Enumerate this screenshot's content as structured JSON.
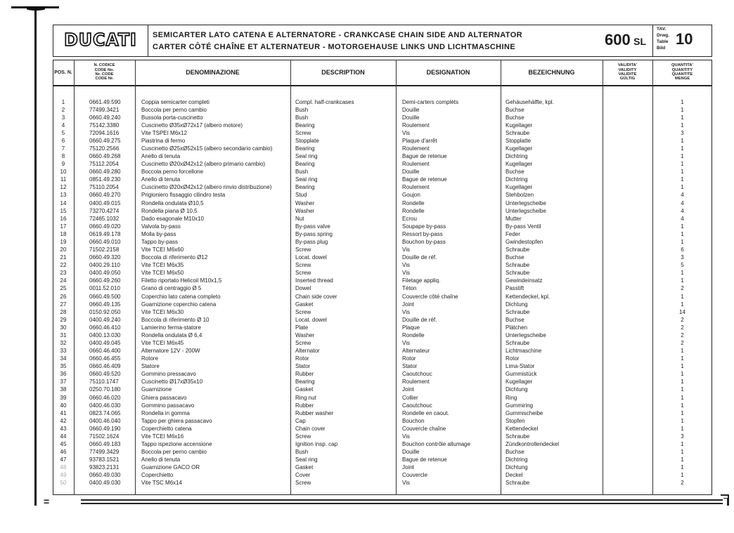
{
  "header": {
    "brand": "DUCATI",
    "title_line1": "SEMICARTER LATO CATENA E ALTERNATORE - CRANKCASE CHAIN SIDE AND ALTERNATOR",
    "title_line2": "CARTER CÔTÉ CHAÎNE ET ALTERNATEUR - MOTORGEHAUSE LINKS UND LICHTMASCHINE",
    "model_number": "600",
    "model_suffix": "SL",
    "table_labels": [
      "TAV.",
      "Drwg.",
      "Table",
      "Bild"
    ],
    "table_number": "10"
  },
  "columns": {
    "pos": "POS. N.",
    "code": "N. CODICE CODE No. Nr. CODE CODE Nr.",
    "code_lines": [
      "N. CODICE",
      "CODE No.",
      "Nr. CODE",
      "CODE Nr."
    ],
    "denominazione": "DENOMINAZIONE",
    "description": "DESCRIPTION",
    "designation": "DESIGNATION",
    "bezeichnung": "BEZEICHNUNG",
    "validity_lines": [
      "VALIDITA'",
      "VALIDITY",
      "VALIDITE",
      "GÜLTIG"
    ],
    "quantity_lines": [
      "QUANTITA'",
      "QUANTITY",
      "QUANTITE",
      "MENGE"
    ]
  },
  "rows": [
    [
      "1",
      "0661.49.590",
      "Coppia semicarter completi",
      "Compl. half-crankcases",
      "Demi-carters complèts",
      "Gehäusehälfte, kpl.",
      "1"
    ],
    [
      "2",
      "77499.3421",
      "Boccola per perno cambio",
      "Bush",
      "Douille",
      "Buchse",
      "1"
    ],
    [
      "3",
      "0660.49.240",
      "Bussola porta-cuscinetto",
      "Bush",
      "Douille",
      "Buchse",
      "1"
    ],
    [
      "4",
      "75142.3380",
      "Cuscinetto Ø35xØ72x17 (albero motore)",
      "Bearing",
      "Roulement",
      "Kugellager",
      "1"
    ],
    [
      "5",
      "72094.1616",
      "Vite TSPEI M6x12",
      "Screw",
      "Vis",
      "Schraube",
      "3"
    ],
    [
      "6",
      "0660.49.275",
      "Piastrina di fermo",
      "Stopplate",
      "Plaque d'arrêt",
      "Stopplatte",
      "1"
    ],
    [
      "7",
      "75120.2566",
      "Cuscinetto Ø25xØ52x15 (albero secondario cambio)",
      "Bearing",
      "Roulement",
      "Kugellager",
      "1"
    ],
    [
      "8",
      "0660.49.268",
      "Anello di tenuta",
      "Seal ring",
      "Bague de retenue",
      "Dichtring",
      "1"
    ],
    [
      "9",
      "75112.2054",
      "Cuscinetto Ø20xØ42x12 (albero primario cambio)",
      "Bearing",
      "Roulement",
      "Kugellager",
      "1"
    ],
    [
      "10",
      "0660.49.280",
      "Boccola perno forcellone",
      "Bush",
      "Douille",
      "Buchse",
      "1"
    ],
    [
      "11",
      "0851.49.230",
      "Anello di tenuta",
      "Seal ring",
      "Bague de retenue",
      "Dichtring",
      "1"
    ],
    [
      "12",
      "75110.2054",
      "Cuscinetto Ø20xØ42x12 (albero rinvio distribuzione)",
      "Bearing",
      "Roulement",
      "Kugellager",
      "1"
    ],
    [
      "13",
      "0660.49.270",
      "Prigioniero fissaggio cilindro testa",
      "Stud",
      "Goujon",
      "Stehbolzen",
      "4"
    ],
    [
      "14",
      "0400.49.015",
      "Rondella ondulata Ø10,5",
      "Washer",
      "Rondelle",
      "Unterlegscheibe",
      "4"
    ],
    [
      "15",
      "73270.4274",
      "Rondella piana Ø 10,5",
      "Washer",
      "Rondelle",
      "Unterlegscheibe",
      "4"
    ],
    [
      "16",
      "72465.1032",
      "Dado esagonale M10x10",
      "Nut",
      "Ecrou",
      "Mutter",
      "4"
    ],
    [
      "17",
      "0660.49.020",
      "Valvola by-pass",
      "By-pass valve",
      "Soupape by-pass",
      "By-pass Ventil",
      "1"
    ],
    [
      "18",
      "0619.49.178",
      "Molla by-pass",
      "By-pass spring",
      "Ressort by-pass",
      "Feder",
      "1"
    ],
    [
      "19",
      "0660.49.010",
      "Tappo by-pass",
      "By-pass plug",
      "Bouchon by-pass",
      "Gwindestopfen",
      "1"
    ],
    [
      "20",
      "71502.2158",
      "Vite TCEI M6x60",
      "Screw",
      "Vis",
      "Schraube",
      "6"
    ],
    [
      "21",
      "0660.49.320",
      "Boccola di riferimento Ø12",
      "Locat. dowel",
      "Douille de réf.",
      "Buchse",
      "3"
    ],
    [
      "22",
      "0400.29.110",
      "Vite TCEI M6x35",
      "Screw",
      "Vis",
      "Schraube",
      "5"
    ],
    [
      "23",
      "0400.49.050",
      "Vite TCEI M6x50",
      "Screw",
      "Vis",
      "Schraube",
      "1"
    ],
    [
      "24",
      "0660.49.260",
      "Filetto riportato Helicoil M10x1,5",
      "Inserted thread",
      "Filetage appliq.",
      "Gewindeinsatz",
      "1"
    ],
    [
      "25",
      "0011.52.010",
      "Grano di centraggio Ø 5",
      "Dowel",
      "Téton",
      "Passtift",
      "2"
    ],
    [
      "26",
      "0660.49.500",
      "Coperchio lato catena completo",
      "Chain side cover",
      "Couvercle côté chaîne",
      "Kettendeckel, kpl.",
      "1"
    ],
    [
      "27",
      "0660.49.135",
      "Guarnizione coperchio catena",
      "Gasket",
      "Joint",
      "Dichtung",
      "1"
    ],
    [
      "28",
      "0150.92.050",
      "Vite TCEI M6x30",
      "Screw",
      "Vis",
      "Schraube",
      "14"
    ],
    [
      "29",
      "0400.49.240",
      "Boccola di riferimento Ø 10",
      "Locat. dowel",
      "Douille de réf.",
      "Buchse",
      "2"
    ],
    [
      "30",
      "0660.46.410",
      "Lamierino ferma-statore",
      "Plate",
      "Plaque",
      "Plätchen",
      "2"
    ],
    [
      "31",
      "0400.13.030",
      "Rondella ondulata Ø 6,4",
      "Washer",
      "Rondelle",
      "Unterlegscheibe",
      "2"
    ],
    [
      "32",
      "0400.49.045",
      "Vite TCEI M6x45",
      "Screw",
      "Vis",
      "Schraube",
      "2"
    ],
    [
      "33",
      "0660.46.400",
      "Alternatore 12V - 200W",
      "Alternator",
      "Alternateur",
      "Lichtmaschine",
      "1"
    ],
    [
      "34",
      "0660.46.455",
      "Rotore",
      "Rotor",
      "Rotor",
      "Rotor",
      "1"
    ],
    [
      "35",
      "0660.46.409",
      "Statore",
      "Stator",
      "Stator",
      "Lima-Stator",
      "1"
    ],
    [
      "36",
      "0660.49.520",
      "Gommino pressacavo",
      "Rubber",
      "Caoutchouc",
      "Gummistück",
      "1"
    ],
    [
      "37",
      "75110.1747",
      "Cuscinetto Ø17xØ35x10",
      "Bearing",
      "Roulement",
      "Kugellager",
      "1"
    ],
    [
      "38",
      "0250.70.180",
      "Guarnizione",
      "Gasket",
      "Joint",
      "Dichtung",
      "1"
    ],
    [
      "39",
      "0660.46.020",
      "Ghiera passacavo",
      "Ring nut",
      "Collier",
      "Ring",
      "1"
    ],
    [
      "40",
      "0400.46.030",
      "Gommino passacavo",
      "Rubber",
      "Caoutchouc",
      "Gummiring",
      "1"
    ],
    [
      "41",
      "0823.74.065",
      "Rondella in gomma",
      "Rubber washer",
      "Rondelle en caout.",
      "Gummischeibe",
      "1"
    ],
    [
      "42",
      "0400.46.040",
      "Tappo per ghiera passacavo",
      "Cap",
      "Bouchon",
      "Stopfen",
      "1"
    ],
    [
      "43",
      "0660.49.190",
      "Coperchietto catena",
      "Chain cover",
      "Couvercle chaîne",
      "Kettendeckel",
      "1"
    ],
    [
      "44",
      "71502.1624",
      "Vite TCEI M6x16",
      "Screw",
      "Vis",
      "Schraube",
      "3"
    ],
    [
      "45",
      "0660.49.183",
      "Tappo ispezione accensione",
      "Ignition insp. cap",
      "Bouchon contrôle allumage",
      "Zündkontrollendeckel",
      "1"
    ],
    [
      "46",
      "77499.3429",
      "Boccola per perno cambio",
      "Bush",
      "Douille",
      "Buchse",
      "1"
    ],
    [
      "47",
      "93783.1521",
      "Anello di tenuta",
      "Seal ring",
      "Bague de retenue",
      "Dichtring",
      "1"
    ],
    [
      "48",
      "93823.2131",
      "Guarnizione GACO OR",
      "Gasket",
      "Joint",
      "Dichtung",
      "1"
    ],
    [
      "49",
      "0660.49.030",
      "Coperchietto",
      "Cover",
      "Couvercle",
      "Deckel",
      "1"
    ],
    [
      "50",
      "0400.49.030",
      "Vite TSC M6x14",
      "Screw",
      "Vis",
      "Schraube",
      "2"
    ]
  ]
}
